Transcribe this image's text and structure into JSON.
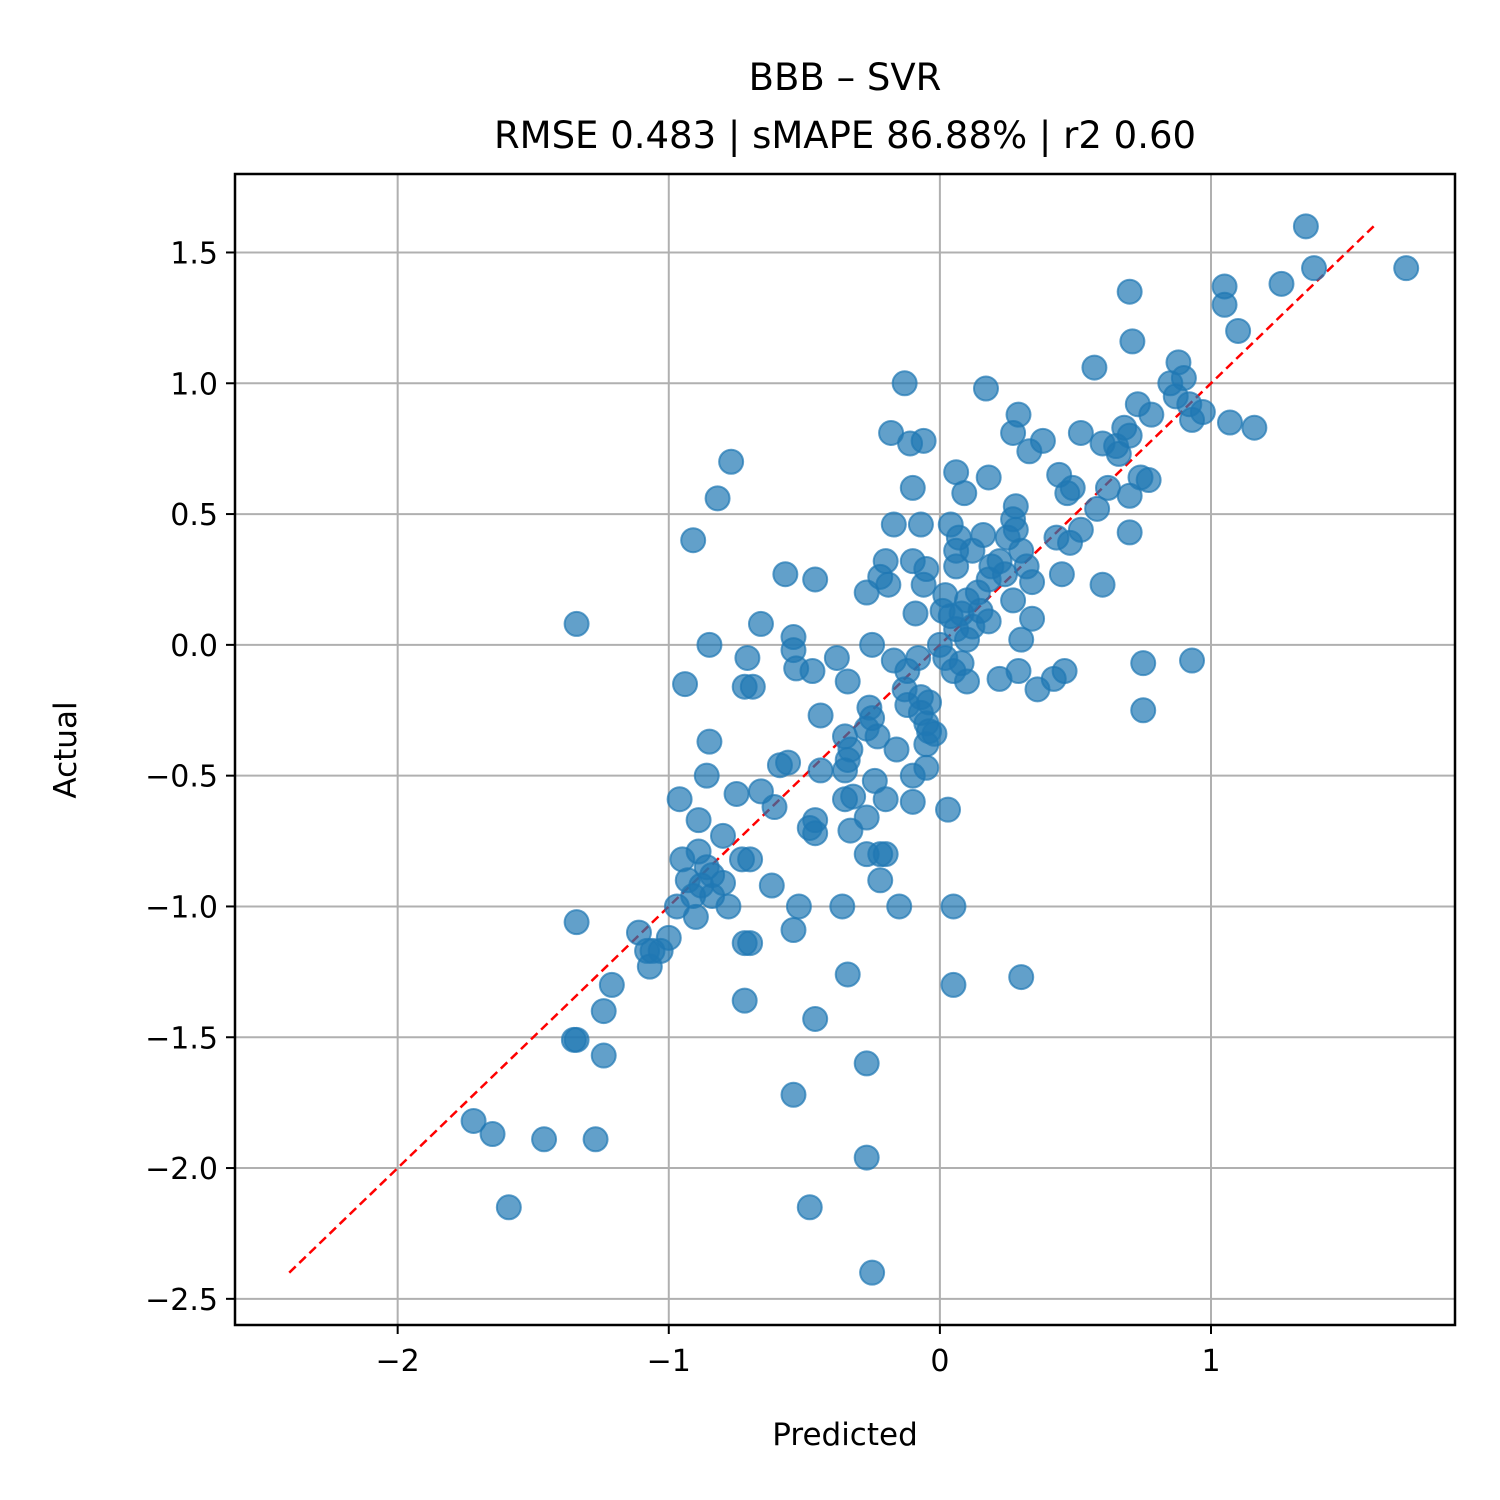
{
  "chart_data": {
    "type": "scatter",
    "title": "BBB – SVR",
    "subtitle": "RMSE 0.483 | sMAPE 86.88%  | r2 0.60",
    "xlabel": "Predicted",
    "ylabel": "Actual",
    "xlim": [
      -2.6,
      1.9
    ],
    "ylim": [
      -2.6,
      1.8
    ],
    "grid": true,
    "xticks": [
      -2,
      -1,
      0,
      1
    ],
    "xtick_labels": [
      "−2",
      "−1",
      "0",
      "1"
    ],
    "yticks": [
      -2.5,
      -2.0,
      -1.5,
      -1.0,
      -0.5,
      0.0,
      0.5,
      1.0,
      1.5
    ],
    "ytick_labels": [
      "−2.5",
      "−2.0",
      "−1.5",
      "−1.0",
      "−0.5",
      "0.0",
      "0.5",
      "1.0",
      "1.5"
    ],
    "point_color": "#1f77b4",
    "reference_line": {
      "label": "y = x",
      "color": "#ff0000",
      "x": [
        -2.4,
        1.6
      ],
      "y": [
        -2.4,
        1.6
      ]
    },
    "points": [
      {
        "x": 1.35,
        "y": 1.6
      },
      {
        "x": 1.38,
        "y": 1.44
      },
      {
        "x": 1.72,
        "y": 1.44
      },
      {
        "x": 1.05,
        "y": 1.37
      },
      {
        "x": 1.26,
        "y": 1.38
      },
      {
        "x": 1.05,
        "y": 1.3
      },
      {
        "x": 0.7,
        "y": 1.35
      },
      {
        "x": 1.1,
        "y": 1.2
      },
      {
        "x": 0.71,
        "y": 1.16
      },
      {
        "x": 0.57,
        "y": 1.06
      },
      {
        "x": 0.88,
        "y": 1.08
      },
      {
        "x": 0.85,
        "y": 1.0
      },
      {
        "x": 0.9,
        "y": 1.02
      },
      {
        "x": 0.87,
        "y": 0.95
      },
      {
        "x": 0.92,
        "y": 0.92
      },
      {
        "x": 0.97,
        "y": 0.89
      },
      {
        "x": 0.93,
        "y": 0.86
      },
      {
        "x": 1.07,
        "y": 0.85
      },
      {
        "x": 1.16,
        "y": 0.83
      },
      {
        "x": 0.73,
        "y": 0.92
      },
      {
        "x": 0.78,
        "y": 0.88
      },
      {
        "x": 0.17,
        "y": 0.98
      },
      {
        "x": -0.13,
        "y": 1.0
      },
      {
        "x": -0.18,
        "y": 0.81
      },
      {
        "x": -0.11,
        "y": 0.77
      },
      {
        "x": -0.06,
        "y": 0.78
      },
      {
        "x": 0.29,
        "y": 0.88
      },
      {
        "x": 0.27,
        "y": 0.81
      },
      {
        "x": 0.38,
        "y": 0.78
      },
      {
        "x": 0.33,
        "y": 0.74
      },
      {
        "x": 0.52,
        "y": 0.81
      },
      {
        "x": 0.6,
        "y": 0.77
      },
      {
        "x": 0.65,
        "y": 0.76
      },
      {
        "x": 0.68,
        "y": 0.83
      },
      {
        "x": 0.7,
        "y": 0.8
      },
      {
        "x": 0.66,
        "y": 0.73
      },
      {
        "x": -0.77,
        "y": 0.7
      },
      {
        "x": -0.82,
        "y": 0.56
      },
      {
        "x": -0.1,
        "y": 0.6
      },
      {
        "x": 0.06,
        "y": 0.66
      },
      {
        "x": 0.18,
        "y": 0.64
      },
      {
        "x": 0.09,
        "y": 0.58
      },
      {
        "x": 0.44,
        "y": 0.65
      },
      {
        "x": 0.49,
        "y": 0.6
      },
      {
        "x": 0.47,
        "y": 0.58
      },
      {
        "x": 0.62,
        "y": 0.6
      },
      {
        "x": 0.7,
        "y": 0.57
      },
      {
        "x": 0.74,
        "y": 0.64
      },
      {
        "x": 0.77,
        "y": 0.63
      },
      {
        "x": 0.58,
        "y": 0.52
      },
      {
        "x": 0.28,
        "y": 0.53
      },
      {
        "x": 0.27,
        "y": 0.48
      },
      {
        "x": -0.17,
        "y": 0.46
      },
      {
        "x": -0.07,
        "y": 0.46
      },
      {
        "x": 0.04,
        "y": 0.46
      },
      {
        "x": 0.07,
        "y": 0.41
      },
      {
        "x": 0.16,
        "y": 0.42
      },
      {
        "x": 0.25,
        "y": 0.41
      },
      {
        "x": 0.28,
        "y": 0.44
      },
      {
        "x": 0.43,
        "y": 0.41
      },
      {
        "x": 0.48,
        "y": 0.39
      },
      {
        "x": 0.52,
        "y": 0.44
      },
      {
        "x": 0.7,
        "y": 0.43
      },
      {
        "x": -0.91,
        "y": 0.4
      },
      {
        "x": 0.06,
        "y": 0.36
      },
      {
        "x": 0.12,
        "y": 0.36
      },
      {
        "x": 0.3,
        "y": 0.36
      },
      {
        "x": -0.2,
        "y": 0.32
      },
      {
        "x": -0.1,
        "y": 0.32
      },
      {
        "x": -0.05,
        "y": 0.29
      },
      {
        "x": 0.06,
        "y": 0.3
      },
      {
        "x": 0.19,
        "y": 0.3
      },
      {
        "x": 0.22,
        "y": 0.32
      },
      {
        "x": 0.32,
        "y": 0.3
      },
      {
        "x": -0.57,
        "y": 0.27
      },
      {
        "x": -0.46,
        "y": 0.25
      },
      {
        "x": -0.22,
        "y": 0.26
      },
      {
        "x": -0.19,
        "y": 0.23
      },
      {
        "x": -0.27,
        "y": 0.2
      },
      {
        "x": -0.06,
        "y": 0.23
      },
      {
        "x": 0.18,
        "y": 0.25
      },
      {
        "x": 0.24,
        "y": 0.27
      },
      {
        "x": 0.34,
        "y": 0.24
      },
      {
        "x": 0.45,
        "y": 0.27
      },
      {
        "x": 0.6,
        "y": 0.23
      },
      {
        "x": 0.02,
        "y": 0.19
      },
      {
        "x": 0.1,
        "y": 0.17
      },
      {
        "x": 0.14,
        "y": 0.2
      },
      {
        "x": 0.27,
        "y": 0.17
      },
      {
        "x": -0.09,
        "y": 0.12
      },
      {
        "x": 0.01,
        "y": 0.13
      },
      {
        "x": 0.04,
        "y": 0.11
      },
      {
        "x": 0.08,
        "y": 0.12
      },
      {
        "x": 0.15,
        "y": 0.13
      },
      {
        "x": 0.34,
        "y": 0.1
      },
      {
        "x": -1.34,
        "y": 0.08
      },
      {
        "x": -0.66,
        "y": 0.08
      },
      {
        "x": 0.06,
        "y": 0.06
      },
      {
        "x": 0.12,
        "y": 0.07
      },
      {
        "x": 0.18,
        "y": 0.09
      },
      {
        "x": -0.54,
        "y": 0.03
      },
      {
        "x": -0.25,
        "y": 0.0
      },
      {
        "x": 0.0,
        "y": 0.0
      },
      {
        "x": 0.1,
        "y": 0.02
      },
      {
        "x": 0.3,
        "y": 0.02
      },
      {
        "x": -0.85,
        "y": 0.0
      },
      {
        "x": -0.71,
        "y": -0.05
      },
      {
        "x": -0.54,
        "y": -0.02
      },
      {
        "x": -0.38,
        "y": -0.05
      },
      {
        "x": -0.17,
        "y": -0.06
      },
      {
        "x": -0.08,
        "y": -0.05
      },
      {
        "x": 0.02,
        "y": -0.05
      },
      {
        "x": 0.08,
        "y": -0.07
      },
      {
        "x": -0.53,
        "y": -0.09
      },
      {
        "x": -0.47,
        "y": -0.1
      },
      {
        "x": -0.12,
        "y": -0.1
      },
      {
        "x": 0.05,
        "y": -0.1
      },
      {
        "x": 0.29,
        "y": -0.1
      },
      {
        "x": 0.22,
        "y": -0.13
      },
      {
        "x": 0.1,
        "y": -0.14
      },
      {
        "x": 0.46,
        "y": -0.1
      },
      {
        "x": 0.42,
        "y": -0.13
      },
      {
        "x": 0.36,
        "y": -0.17
      },
      {
        "x": 0.75,
        "y": -0.07
      },
      {
        "x": 0.93,
        "y": -0.06
      },
      {
        "x": 0.75,
        "y": -0.25
      },
      {
        "x": -0.94,
        "y": -0.15
      },
      {
        "x": -0.72,
        "y": -0.16
      },
      {
        "x": -0.69,
        "y": -0.16
      },
      {
        "x": -0.34,
        "y": -0.14
      },
      {
        "x": -0.13,
        "y": -0.17
      },
      {
        "x": -0.07,
        "y": -0.2
      },
      {
        "x": -0.12,
        "y": -0.23
      },
      {
        "x": -0.04,
        "y": -0.22
      },
      {
        "x": -0.07,
        "y": -0.26
      },
      {
        "x": -0.44,
        "y": -0.27
      },
      {
        "x": -0.26,
        "y": -0.24
      },
      {
        "x": -0.25,
        "y": -0.28
      },
      {
        "x": -0.05,
        "y": -0.3
      },
      {
        "x": -0.27,
        "y": -0.32
      },
      {
        "x": -0.04,
        "y": -0.33
      },
      {
        "x": -0.02,
        "y": -0.34
      },
      {
        "x": -0.35,
        "y": -0.35
      },
      {
        "x": -0.23,
        "y": -0.35
      },
      {
        "x": -0.05,
        "y": -0.38
      },
      {
        "x": -0.85,
        "y": -0.37
      },
      {
        "x": -0.33,
        "y": -0.4
      },
      {
        "x": -0.16,
        "y": -0.4
      },
      {
        "x": -0.34,
        "y": -0.44
      },
      {
        "x": -0.59,
        "y": -0.46
      },
      {
        "x": -0.56,
        "y": -0.45
      },
      {
        "x": -0.44,
        "y": -0.48
      },
      {
        "x": -0.35,
        "y": -0.48
      },
      {
        "x": -0.05,
        "y": -0.47
      },
      {
        "x": -0.1,
        "y": -0.5
      },
      {
        "x": -0.86,
        "y": -0.5
      },
      {
        "x": -0.24,
        "y": -0.52
      },
      {
        "x": -0.75,
        "y": -0.57
      },
      {
        "x": -0.66,
        "y": -0.56
      },
      {
        "x": -0.35,
        "y": -0.59
      },
      {
        "x": -0.32,
        "y": -0.58
      },
      {
        "x": -0.2,
        "y": -0.59
      },
      {
        "x": -0.1,
        "y": -0.6
      },
      {
        "x": -0.96,
        "y": -0.59
      },
      {
        "x": -0.61,
        "y": -0.62
      },
      {
        "x": 0.03,
        "y": -0.63
      },
      {
        "x": -0.89,
        "y": -0.67
      },
      {
        "x": -0.46,
        "y": -0.67
      },
      {
        "x": -0.27,
        "y": -0.66
      },
      {
        "x": -0.33,
        "y": -0.71
      },
      {
        "x": -0.48,
        "y": -0.7
      },
      {
        "x": -0.46,
        "y": -0.72
      },
      {
        "x": -0.8,
        "y": -0.73
      },
      {
        "x": -0.27,
        "y": -0.8
      },
      {
        "x": -0.2,
        "y": -0.8
      },
      {
        "x": -0.22,
        "y": -0.8
      },
      {
        "x": -0.89,
        "y": -0.79
      },
      {
        "x": -0.95,
        "y": -0.82
      },
      {
        "x": -0.73,
        "y": -0.82
      },
      {
        "x": -0.7,
        "y": -0.82
      },
      {
        "x": -0.86,
        "y": -0.85
      },
      {
        "x": -0.84,
        "y": -0.88
      },
      {
        "x": -0.22,
        "y": -0.9
      },
      {
        "x": -0.93,
        "y": -0.9
      },
      {
        "x": -0.88,
        "y": -0.92
      },
      {
        "x": -0.8,
        "y": -0.91
      },
      {
        "x": -0.62,
        "y": -0.92
      },
      {
        "x": -0.84,
        "y": -0.96
      },
      {
        "x": -0.91,
        "y": -0.96
      },
      {
        "x": -0.97,
        "y": -1.0
      },
      {
        "x": -0.78,
        "y": -1.0
      },
      {
        "x": -0.52,
        "y": -1.0
      },
      {
        "x": -0.36,
        "y": -1.0
      },
      {
        "x": -0.15,
        "y": -1.0
      },
      {
        "x": 0.05,
        "y": -1.0
      },
      {
        "x": -0.9,
        "y": -1.04
      },
      {
        "x": -1.34,
        "y": -1.06
      },
      {
        "x": -0.54,
        "y": -1.09
      },
      {
        "x": -1.11,
        "y": -1.1
      },
      {
        "x": -1.0,
        "y": -1.12
      },
      {
        "x": -0.72,
        "y": -1.14
      },
      {
        "x": -0.7,
        "y": -1.14
      },
      {
        "x": -1.06,
        "y": -1.17
      },
      {
        "x": -1.03,
        "y": -1.17
      },
      {
        "x": -1.08,
        "y": -1.17
      },
      {
        "x": -1.07,
        "y": -1.23
      },
      {
        "x": -0.34,
        "y": -1.26
      },
      {
        "x": 0.3,
        "y": -1.27
      },
      {
        "x": 0.05,
        "y": -1.3
      },
      {
        "x": -1.21,
        "y": -1.3
      },
      {
        "x": -0.72,
        "y": -1.36
      },
      {
        "x": -1.24,
        "y": -1.4
      },
      {
        "x": -0.46,
        "y": -1.43
      },
      {
        "x": -1.35,
        "y": -1.51
      },
      {
        "x": -1.34,
        "y": -1.51
      },
      {
        "x": -1.24,
        "y": -1.57
      },
      {
        "x": -0.27,
        "y": -1.6
      },
      {
        "x": -0.54,
        "y": -1.72
      },
      {
        "x": -1.72,
        "y": -1.82
      },
      {
        "x": -1.65,
        "y": -1.87
      },
      {
        "x": -1.46,
        "y": -1.89
      },
      {
        "x": -1.27,
        "y": -1.89
      },
      {
        "x": -0.27,
        "y": -1.96
      },
      {
        "x": -1.59,
        "y": -2.15
      },
      {
        "x": -0.48,
        "y": -2.15
      },
      {
        "x": -0.25,
        "y": -2.4
      }
    ]
  }
}
